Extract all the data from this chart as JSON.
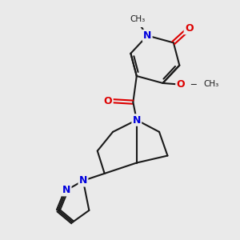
{
  "bg_color": "#eaeaea",
  "bond_color": "#1a1a1a",
  "N_color": "#0000dd",
  "O_color": "#dd0000",
  "font_size": 9,
  "lw": 1.5,
  "figsize": [
    3.0,
    3.0
  ],
  "dpi": 100,
  "xlim": [
    0,
    10
  ],
  "ylim": [
    0,
    10
  ],
  "dbl_off": 0.09
}
